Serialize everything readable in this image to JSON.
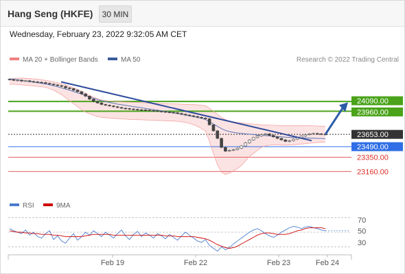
{
  "header": {
    "title": "Hang Seng (HKFE)",
    "timeframe_button": "30 MIN",
    "timestamp": "Wednesday, February 23, 2022 9:32:05 AM CET"
  },
  "legend": {
    "bollinger_label": "MA 20 + Bollinger Bands",
    "ma50_label": "MA 50",
    "copyright": "Research © 2022 Trading Central",
    "colors": {
      "bollinger": "#f08080",
      "ma50": "#3a5a9a"
    }
  },
  "rsi_legend": {
    "rsi_label": "RSI",
    "ma_label": "9MA",
    "colors": {
      "rsi": "#4a7bd0",
      "ma": "#cc0000"
    }
  },
  "levels": [
    {
      "value": "24090.00",
      "kind": "resistance",
      "color": "#4aa31a"
    },
    {
      "value": "23960.00",
      "kind": "resistance",
      "color": "#4aa31a"
    },
    {
      "value": "23653.00",
      "kind": "last",
      "color": "#333333"
    },
    {
      "value": "23490.00",
      "kind": "pivot",
      "color": "#2f6ee6"
    },
    {
      "value": "23350.00",
      "kind": "support",
      "color": "#e06060"
    },
    {
      "value": "23160.00",
      "kind": "support",
      "color": "#e06060"
    }
  ],
  "rsi_ticks": [
    "70",
    "50",
    "30"
  ],
  "x_labels": [
    "Feb 19",
    "Feb 22",
    "Feb 23",
    "Feb 24"
  ],
  "chart_data": {
    "type": "candlestick",
    "title": "Hang Seng (HKFE)",
    "timeframe": "30 MIN",
    "price": {
      "close": [
        24380,
        24370,
        24372,
        24360,
        24365,
        24355,
        24350,
        24345,
        24340,
        24330,
        24320,
        24310,
        24300,
        24290,
        24270,
        24260,
        24240,
        24220,
        24190,
        24160,
        24120,
        24090,
        24070,
        24050,
        24040,
        24030,
        24020,
        24010,
        24000,
        23995,
        23990,
        23985,
        23980,
        23978,
        23975,
        23970,
        23968,
        23960,
        23955,
        23950,
        23945,
        23940,
        23930,
        23920,
        23910,
        23900,
        23890,
        23880,
        23870,
        23860,
        23780,
        23700,
        23600,
        23480,
        23430,
        23440,
        23450,
        23470,
        23500,
        23540,
        23580,
        23610,
        23630,
        23650,
        23660,
        23640,
        23620,
        23600,
        23580,
        23560,
        23570,
        23590,
        23610,
        23630,
        23650,
        23660,
        23665,
        23660,
        23655,
        23653
      ],
      "trend_line": [
        [
          0,
          24350
        ],
        [
          79,
          23570
        ]
      ],
      "projection": [
        [
          79,
          23653
        ],
        [
          86,
          24060
        ]
      ]
    },
    "bollinger_upper": [
      24390,
      24395,
      24398,
      24400,
      24398,
      24395,
      24390,
      24385,
      24378,
      24370,
      24360,
      24350,
      24340,
      24325,
      24310,
      24290,
      24270,
      24250,
      24225,
      24200,
      24170,
      24145,
      24125,
      24110,
      24100,
      24095,
      24090,
      24088,
      24085,
      24082,
      24080,
      24078,
      24076,
      24074,
      24072,
      24070,
      24068,
      24066,
      24064,
      24062,
      24060,
      24058,
      24056,
      24054,
      24052,
      24050,
      24048,
      24045,
      24040,
      24035,
      24000,
      23960,
      23920,
      23880,
      23850,
      23830,
      23820,
      23810,
      23805,
      23800,
      23795,
      23790,
      23785,
      23780,
      23778,
      23776,
      23774,
      23772,
      23770,
      23770,
      23770,
      23770,
      23770,
      23770,
      23770,
      23768,
      23766,
      23764,
      23762,
      23760
    ],
    "bollinger_lower": [
      24320,
      24318,
      24315,
      24310,
      24305,
      24300,
      24295,
      24290,
      24285,
      24278,
      24260,
      24240,
      24210,
      24180,
      24140,
      24100,
      24060,
      24020,
      23980,
      23950,
      23925,
      23905,
      23890,
      23880,
      23875,
      23870,
      23866,
      23862,
      23858,
      23855,
      23852,
      23850,
      23848,
      23846,
      23844,
      23842,
      23840,
      23838,
      23836,
      23834,
      23832,
      23830,
      23826,
      23820,
      23810,
      23800,
      23780,
      23760,
      23730,
      23700,
      23560,
      23400,
      23250,
      23150,
      23120,
      23140,
      23170,
      23200,
      23240,
      23300,
      23360,
      23400,
      23440,
      23480,
      23500,
      23510,
      23515,
      23515,
      23512,
      23510,
      23512,
      23515,
      23520,
      23525,
      23530,
      23535,
      23540,
      23545,
      23548,
      23550
    ],
    "ma50": [
      24390,
      24385,
      24378,
      24370,
      24362,
      24354,
      24346,
      24338,
      24330,
      24320,
      24310,
      24298,
      24285,
      24270,
      24255,
      24240,
      24222,
      24205,
      24188,
      24170,
      24150,
      24132,
      24115,
      24100,
      24088,
      24076,
      24065,
      24055,
      24046,
      24038,
      24030,
      24022,
      24014,
      24006,
      23998,
      23990,
      23982,
      23974,
      23966,
      23958,
      23950,
      23940,
      23930,
      23920,
      23910,
      23900,
      23890,
      23878,
      23865,
      23850,
      23820,
      23790,
      23760,
      23730,
      23705,
      23690,
      23680,
      23672,
      23665,
      23660,
      23655,
      23650,
      23645,
      23640,
      23636,
      23632,
      23628,
      23624,
      23620,
      23616,
      23614,
      23612,
      23610,
      23608,
      23606,
      23604,
      23602,
      23600,
      23598,
      23596
    ],
    "rsi": [
      55,
      52,
      50,
      48,
      53,
      46,
      50,
      44,
      42,
      48,
      52,
      40,
      45,
      38,
      35,
      42,
      48,
      39,
      44,
      50,
      46,
      52,
      48,
      44,
      50,
      46,
      42,
      48,
      53,
      45,
      40,
      47,
      51,
      44,
      49,
      46,
      42,
      48,
      45,
      41,
      47,
      43,
      39,
      45,
      50,
      46,
      42,
      38,
      36,
      40,
      32,
      28,
      24,
      30,
      26,
      29,
      34,
      38,
      42,
      46,
      50,
      53,
      55,
      52,
      48,
      45,
      43,
      46,
      50,
      53,
      56,
      58,
      57,
      55,
      57,
      58,
      56,
      55,
      53,
      52
    ],
    "rsi_ma": [
      52,
      51,
      50,
      50,
      49,
      49,
      48,
      48,
      47,
      47,
      47,
      46,
      46,
      45,
      44,
      44,
      44,
      44,
      44,
      45,
      46,
      47,
      47,
      47,
      47,
      47,
      46,
      46,
      46,
      46,
      46,
      46,
      46,
      46,
      46,
      46,
      46,
      46,
      46,
      45,
      45,
      45,
      44,
      44,
      44,
      44,
      44,
      43,
      42,
      41,
      39,
      36,
      33,
      31,
      29,
      28,
      29,
      31,
      34,
      37,
      40,
      43,
      46,
      48,
      49,
      49,
      48,
      47,
      47,
      47,
      48,
      50,
      52,
      53,
      55,
      56,
      56,
      56,
      56,
      55
    ],
    "rsi_ylim": [
      20,
      80
    ],
    "rsi_levels": [
      70,
      50,
      30
    ],
    "x_tick_labels": [
      "Feb 19",
      "Feb 22",
      "Feb 23",
      "Feb 24"
    ],
    "levels": [
      24090.0,
      23960.0,
      23653.0,
      23490.0,
      23350.0,
      23160.0
    ]
  }
}
